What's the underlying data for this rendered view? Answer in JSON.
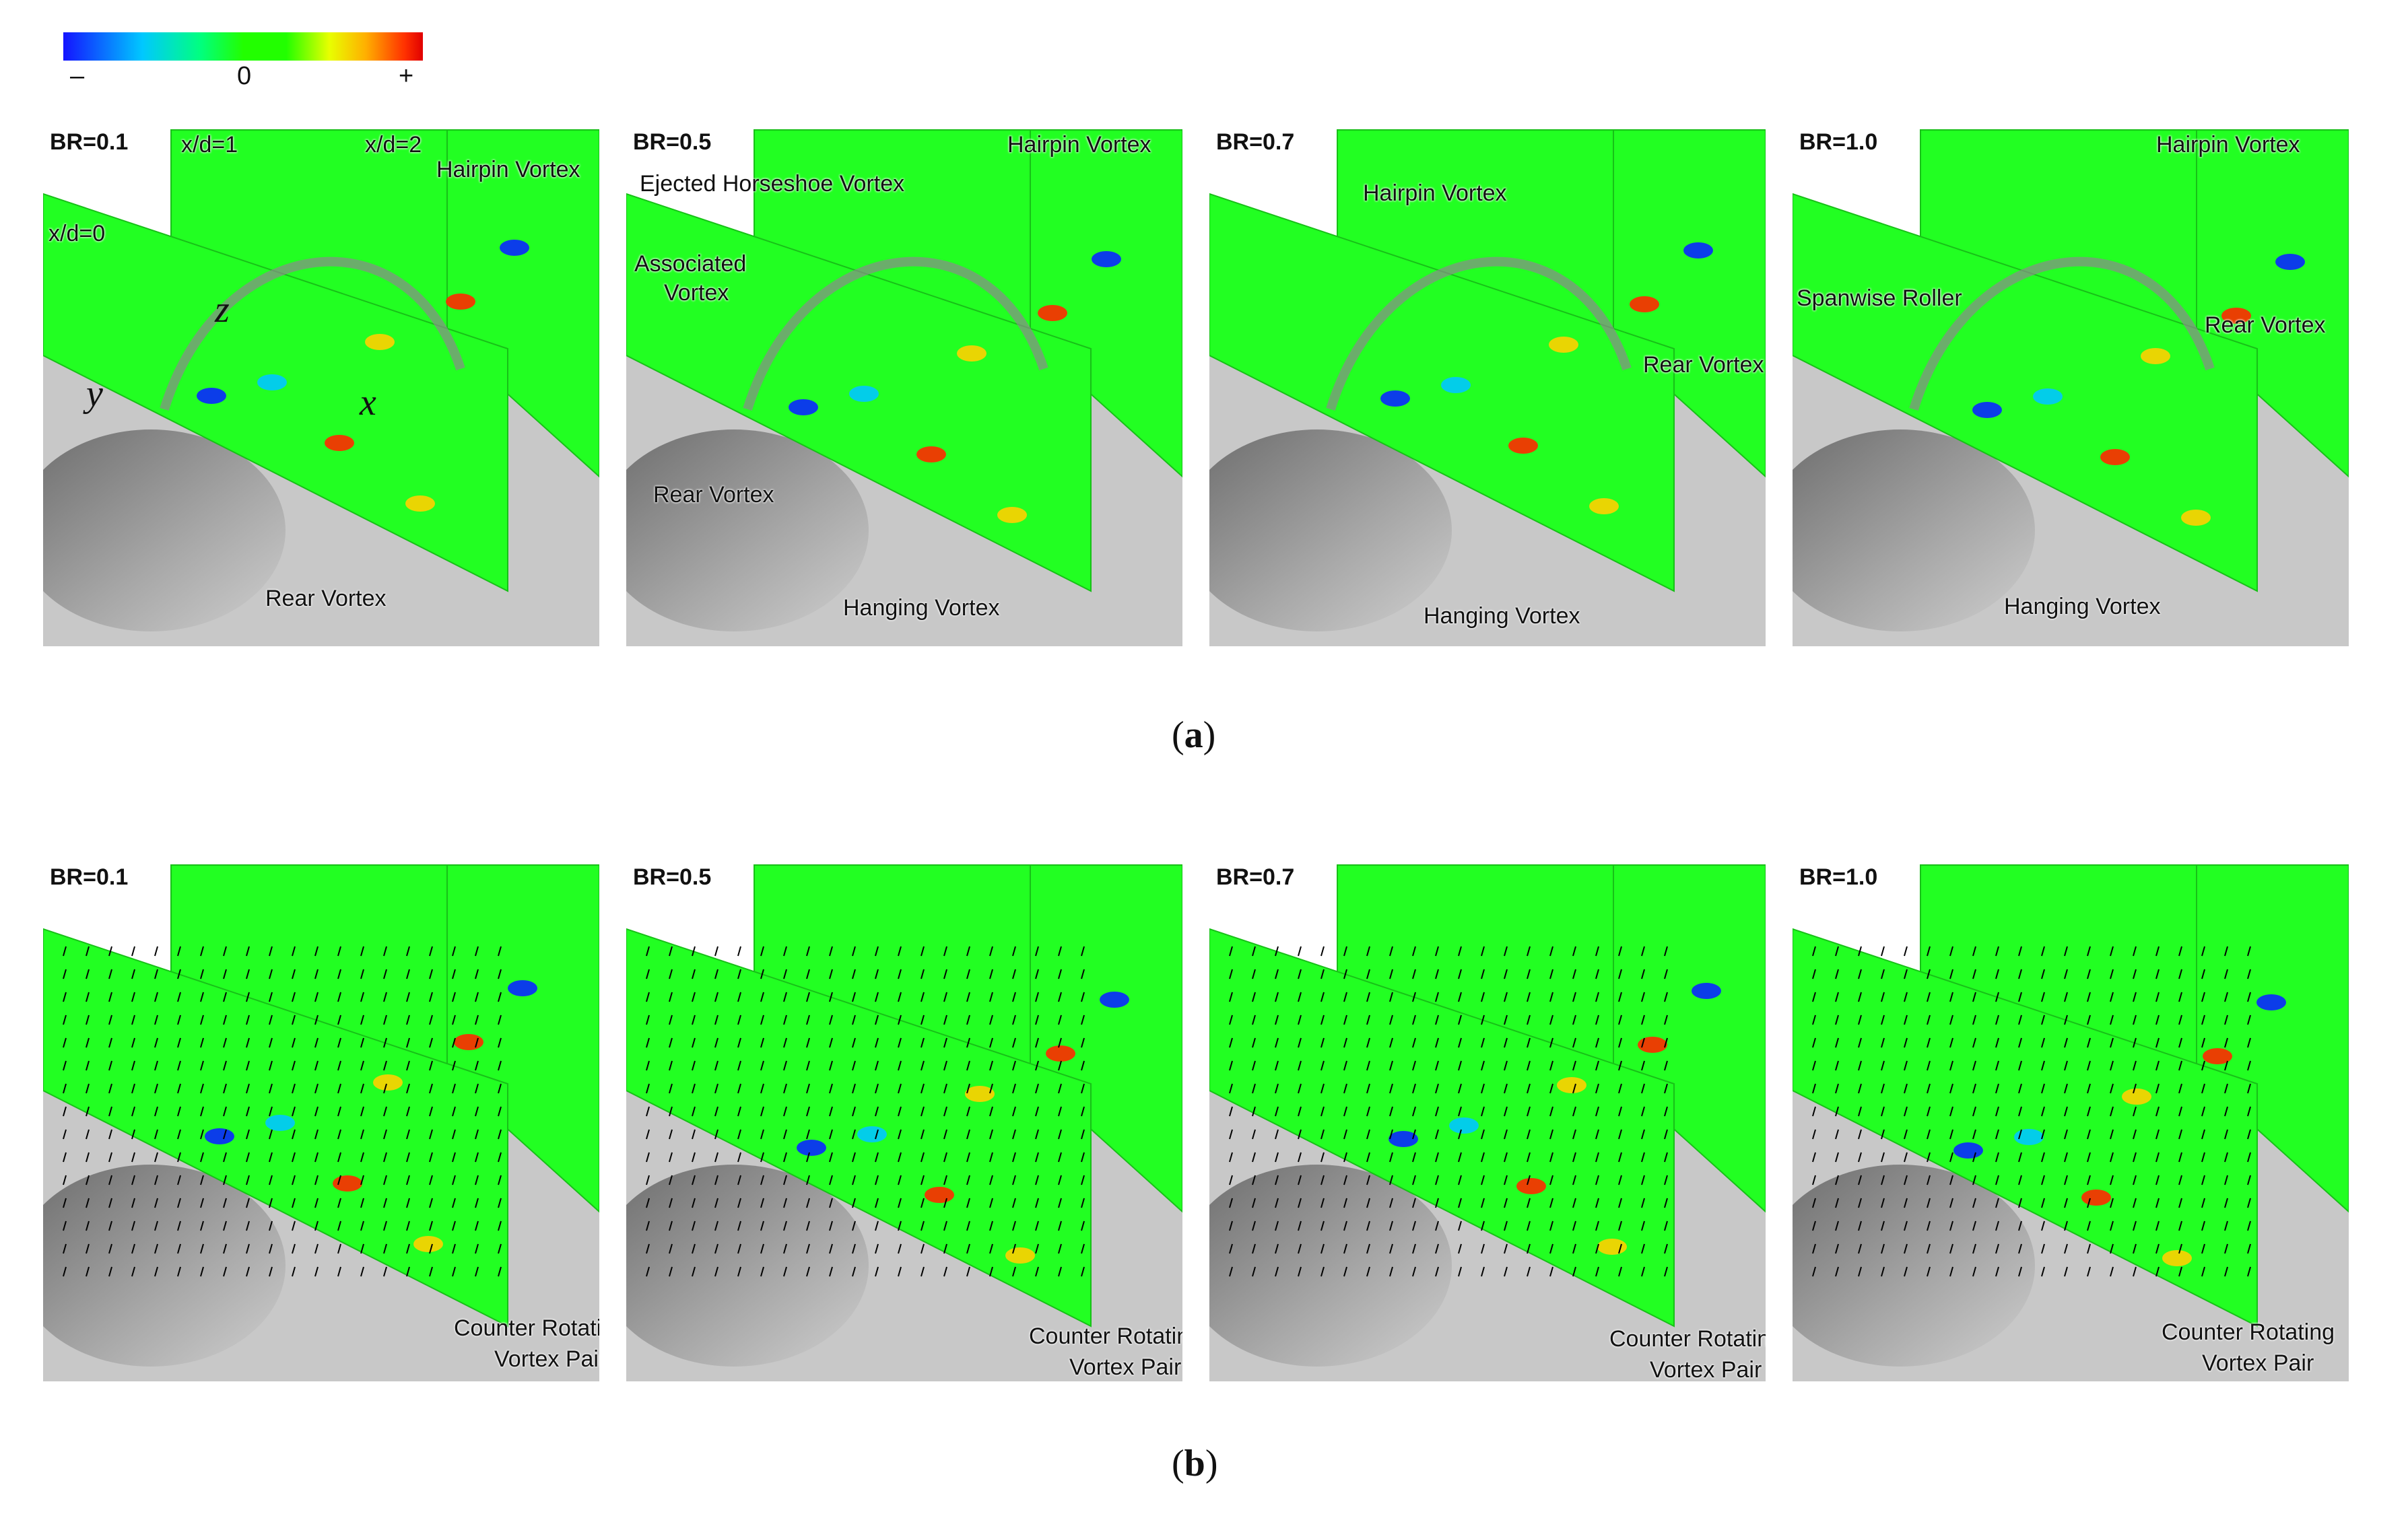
{
  "colorbar": {
    "min_label": "–",
    "mid_label": "0",
    "max_label": "+",
    "colors": [
      "#1414ff",
      "#00c8ff",
      "#00ff80",
      "#22ff00",
      "#e8ff00",
      "#ffb000",
      "#e00000"
    ]
  },
  "row_a": {
    "caption": {
      "open": "(",
      "letter": "a",
      "close": ")"
    },
    "panels": [
      {
        "br": "BR=0.1",
        "planes": [
          "x/d=0",
          "x/d=1",
          "x/d=2"
        ],
        "axes": [
          "z",
          "y",
          "x"
        ],
        "labels": [
          "Hairpin Vortex",
          "Rear Vortex"
        ]
      },
      {
        "br": "BR=0.5",
        "labels": [
          "Hairpin Vortex",
          "Ejected Horseshoe Vortex",
          "Associated",
          "Vortex",
          "Rear Vortex",
          "Hanging Vortex"
        ]
      },
      {
        "br": "BR=0.7",
        "labels": [
          "Hairpin Vortex",
          "Rear Vortex",
          "Hanging Vortex"
        ]
      },
      {
        "br": "BR=1.0",
        "labels": [
          "Hairpin Vortex",
          "Spanwise Roller",
          "Rear Vortex",
          "Hanging Vortex"
        ]
      }
    ]
  },
  "row_b": {
    "caption": {
      "open": "(",
      "letter": "b",
      "close": ")"
    },
    "panels": [
      {
        "br": "BR=0.1",
        "labels": [
          "Counter Rotating",
          "Vortex Pair"
        ]
      },
      {
        "br": "BR=0.5",
        "labels": [
          "Counter Rotating",
          "Vortex Pair"
        ]
      },
      {
        "br": "BR=0.7",
        "labels": [
          "Counter Rotating",
          "Vortex Pair"
        ]
      },
      {
        "br": "BR=1.0",
        "labels": [
          "Counter Rotating",
          "Vortex Pair"
        ]
      }
    ]
  }
}
